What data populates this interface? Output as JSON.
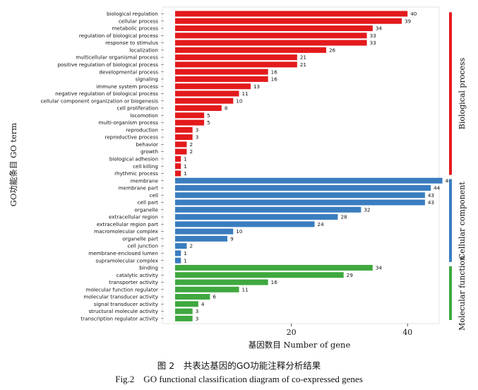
{
  "chart_data": {
    "type": "bar",
    "orientation": "horizontal",
    "xlabel": "基因数目 Number of gene",
    "ylabel": "GO功能条目 GO term",
    "xlim": [
      0,
      60
    ],
    "xticks": [
      20,
      40,
      60
    ],
    "grid": false,
    "series": [
      {
        "name": "Biological process",
        "color": "#e31a1c",
        "categories": [
          "biological regulation",
          "cellular process",
          "metabolic process",
          "regulation of biological process",
          "response to stimulus",
          "localization",
          "multicellular organismal process",
          "positive regulation of biological process",
          "developmental process",
          "signaling",
          "immune system process",
          "negative regulation of biological process",
          "cellular component organization or biogenesis",
          "cell proliferation",
          "locomotion",
          "multi-organism process",
          "reproduction",
          "reproductive process",
          "behavior",
          "growth",
          "biological adhesion",
          "cell killing",
          "rhythmic process"
        ],
        "values": [
          40,
          39,
          34,
          33,
          33,
          26,
          21,
          21,
          16,
          16,
          13,
          11,
          10,
          8,
          5,
          5,
          3,
          3,
          2,
          2,
          1,
          1,
          1
        ]
      },
      {
        "name": "Cellular component",
        "color": "#3a7dbf",
        "categories": [
          "membrane",
          "membrane part",
          "cell",
          "cell part",
          "organelle",
          "extracellular region",
          "extracellular region part",
          "macromolecular complex",
          "organelle part",
          "cell junction",
          "membrane-enclosed lumen",
          "supramolecular complex"
        ],
        "values": [
          46,
          44,
          43,
          43,
          32,
          28,
          24,
          10,
          9,
          2,
          1,
          1
        ]
      },
      {
        "name": "Molecular function",
        "color": "#3fa83f",
        "categories": [
          "binding",
          "catalytic activity",
          "transporter activity",
          "molecular function regulator",
          "molecular transducer activity",
          "signal transducer activity",
          "structural molecule activity",
          "transcription regulator activity"
        ],
        "values": [
          34,
          29,
          16,
          11,
          6,
          4,
          3,
          3
        ]
      }
    ]
  },
  "caption": {
    "zh": "图 2　共表达基因的GO功能注释分析结果",
    "en": "Fig.2　GO functional classification diagram of co-expressed genes"
  }
}
